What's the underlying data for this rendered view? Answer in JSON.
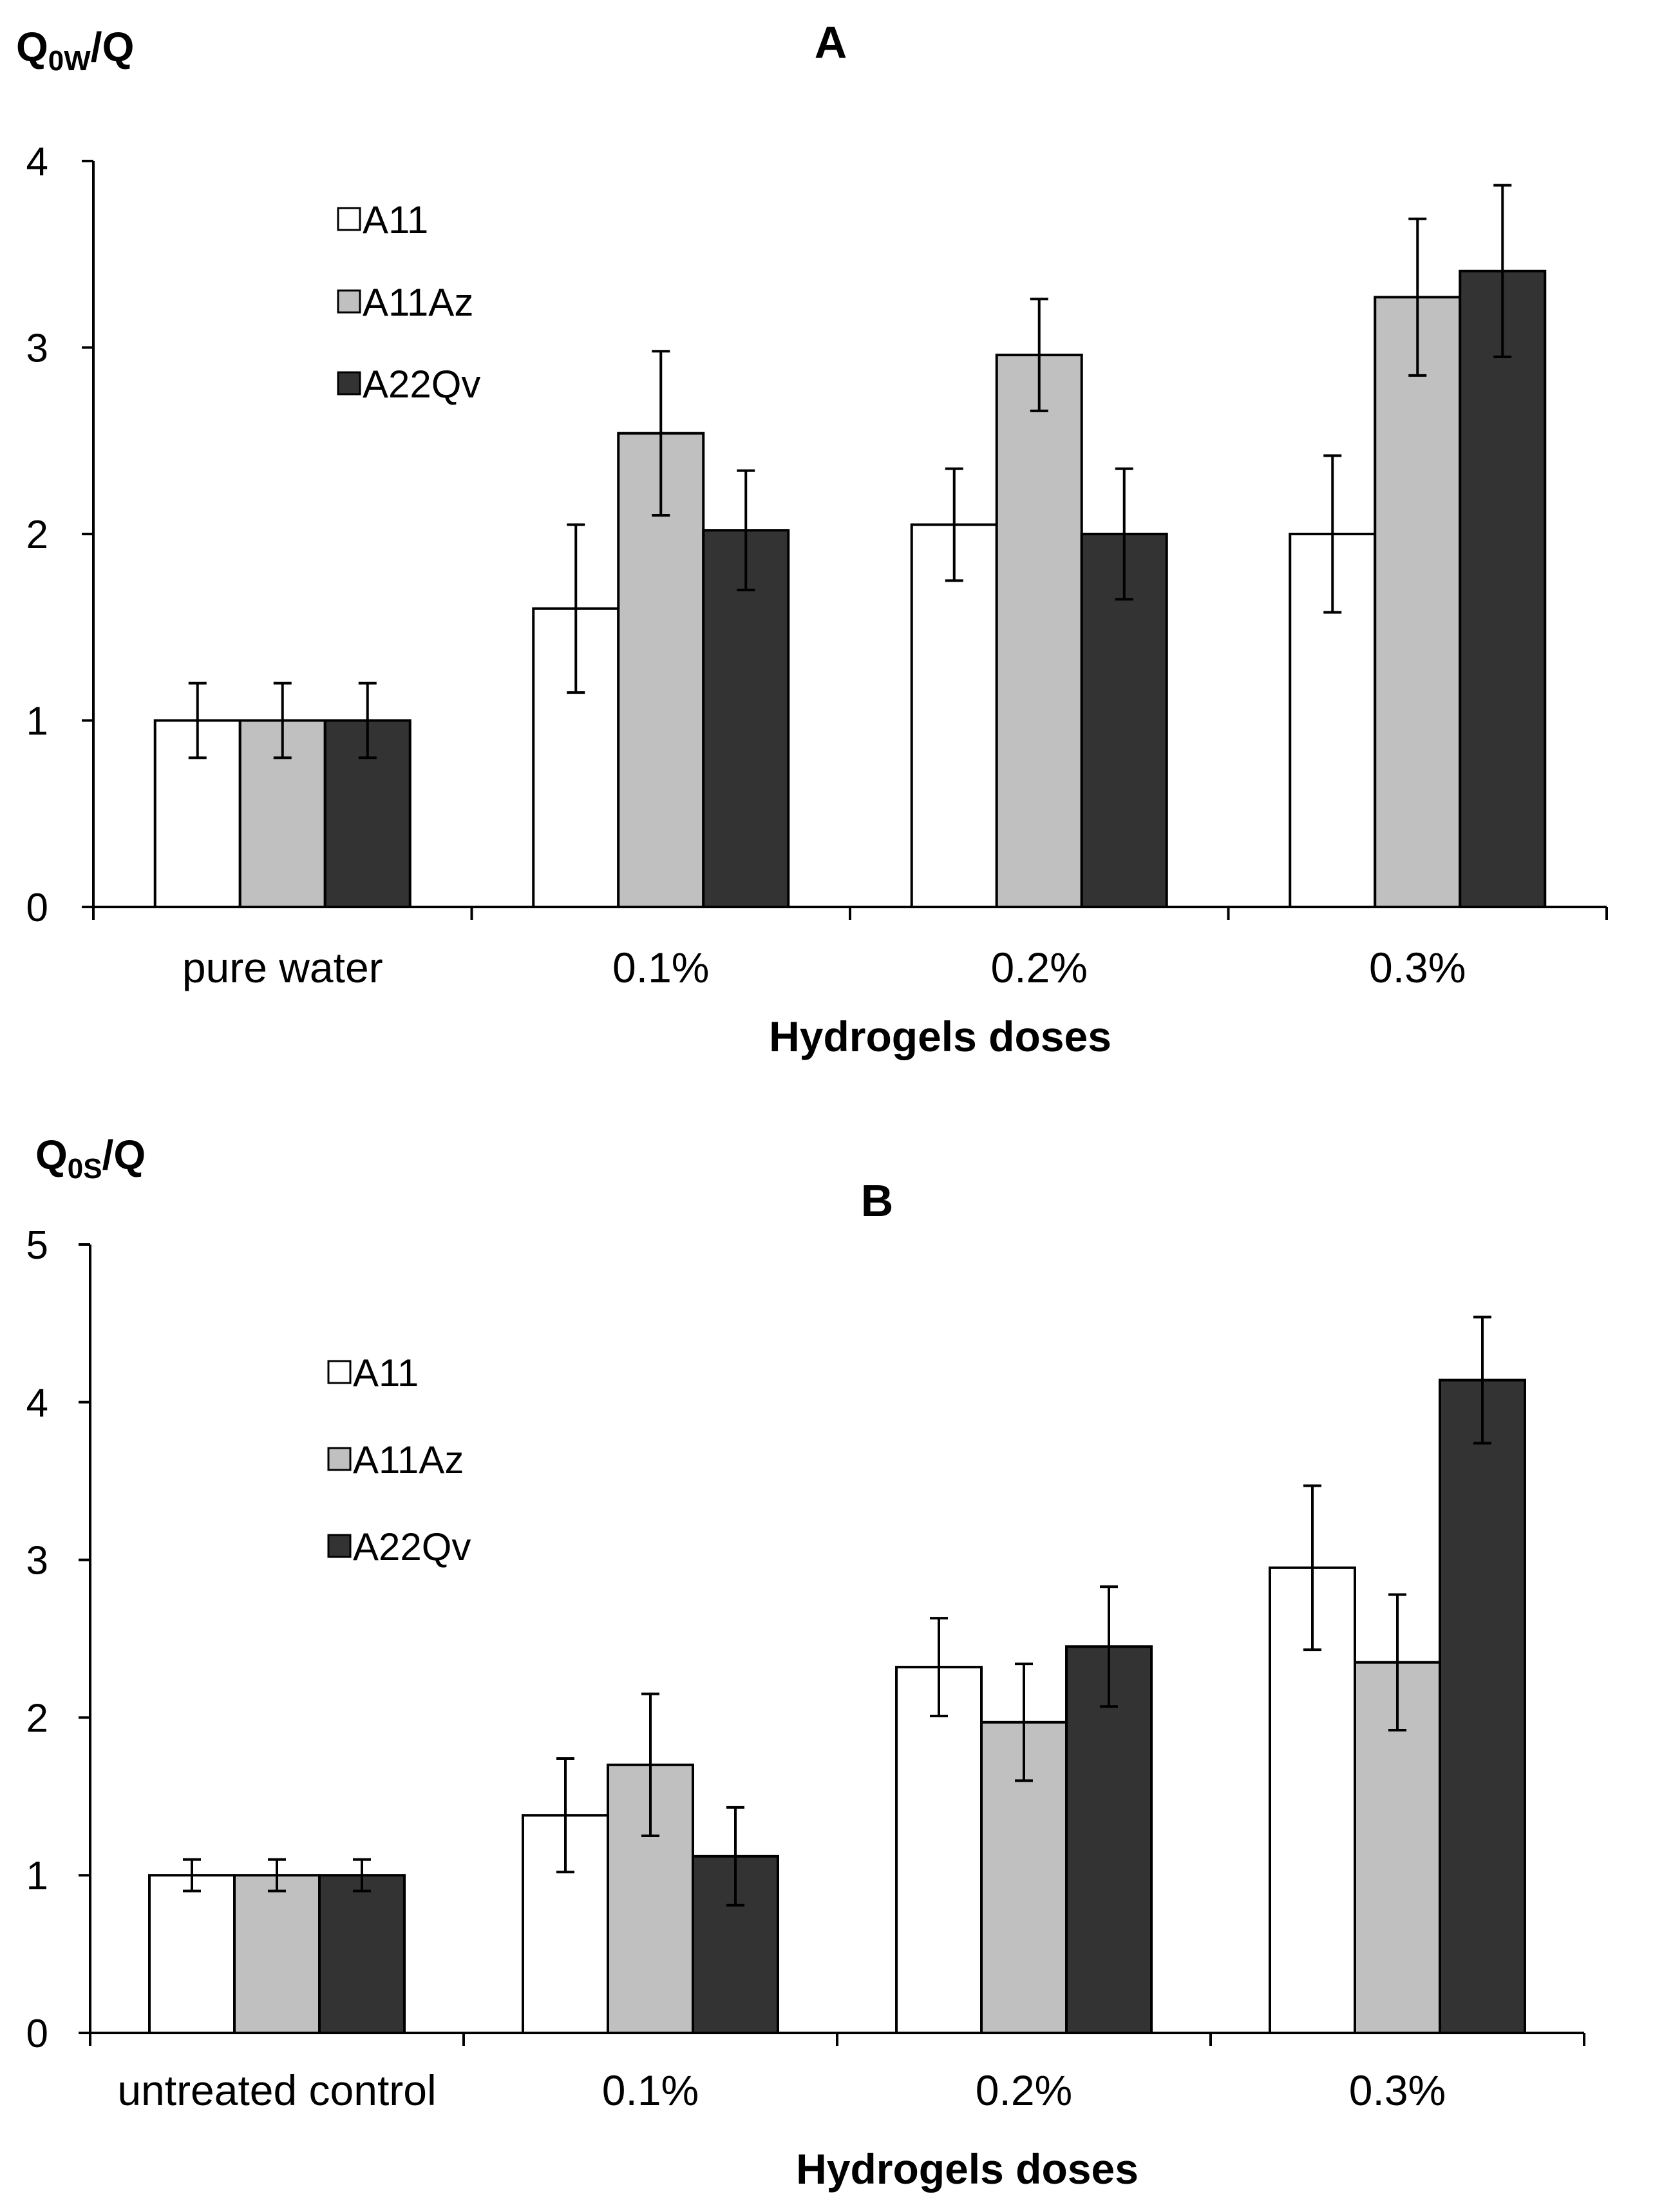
{
  "chart_data": [
    {
      "type": "bar",
      "title": "A",
      "ylabel": {
        "main": "Q",
        "sub": "0W",
        "tail": "/Q"
      },
      "xlabel": "Hydrogels doses",
      "categories": [
        "pure water",
        "0.1%",
        "0.2%",
        "0.3%"
      ],
      "ylim": [
        0,
        4
      ],
      "yticks": [
        "0",
        "1",
        "2",
        "3",
        "4"
      ],
      "legend_position": "top-left",
      "series": [
        {
          "name": "A11",
          "color": "#ffffff",
          "values": [
            1.0,
            1.6,
            2.05,
            2.0
          ],
          "errors": [
            0.2,
            0.45,
            0.3,
            0.42
          ]
        },
        {
          "name": "A11Az",
          "color": "#c0c0c0",
          "values": [
            1.0,
            2.54,
            2.96,
            3.27
          ],
          "errors": [
            0.2,
            0.44,
            0.3,
            0.42
          ]
        },
        {
          "name": "A22Qv",
          "color": "#333333",
          "values": [
            1.0,
            2.02,
            2.0,
            3.41
          ],
          "errors": [
            0.2,
            0.32,
            0.35,
            0.46
          ]
        }
      ]
    },
    {
      "type": "bar",
      "title": "B",
      "ylabel": {
        "main": "Q",
        "sub": "0S",
        "tail": "/Q"
      },
      "xlabel": "Hydrogels doses",
      "categories": [
        "untreated control",
        "0.1%",
        "0.2%",
        "0.3%"
      ],
      "ylim": [
        0,
        5
      ],
      "yticks": [
        "0",
        "1",
        "2",
        "3",
        "4",
        "5"
      ],
      "legend_position": "top-left",
      "series": [
        {
          "name": "A11",
          "color": "#ffffff",
          "values": [
            1.0,
            1.38,
            2.32,
            2.95
          ],
          "errors": [
            0.1,
            0.36,
            0.31,
            0.52
          ]
        },
        {
          "name": "A11Az",
          "color": "#c0c0c0",
          "values": [
            1.0,
            1.7,
            1.97,
            2.35
          ],
          "errors": [
            0.1,
            0.45,
            0.37,
            0.43
          ]
        },
        {
          "name": "A22Qv",
          "color": "#333333",
          "values": [
            1.0,
            1.12,
            2.45,
            4.14
          ],
          "errors": [
            0.1,
            0.31,
            0.38,
            0.4
          ]
        }
      ]
    }
  ]
}
